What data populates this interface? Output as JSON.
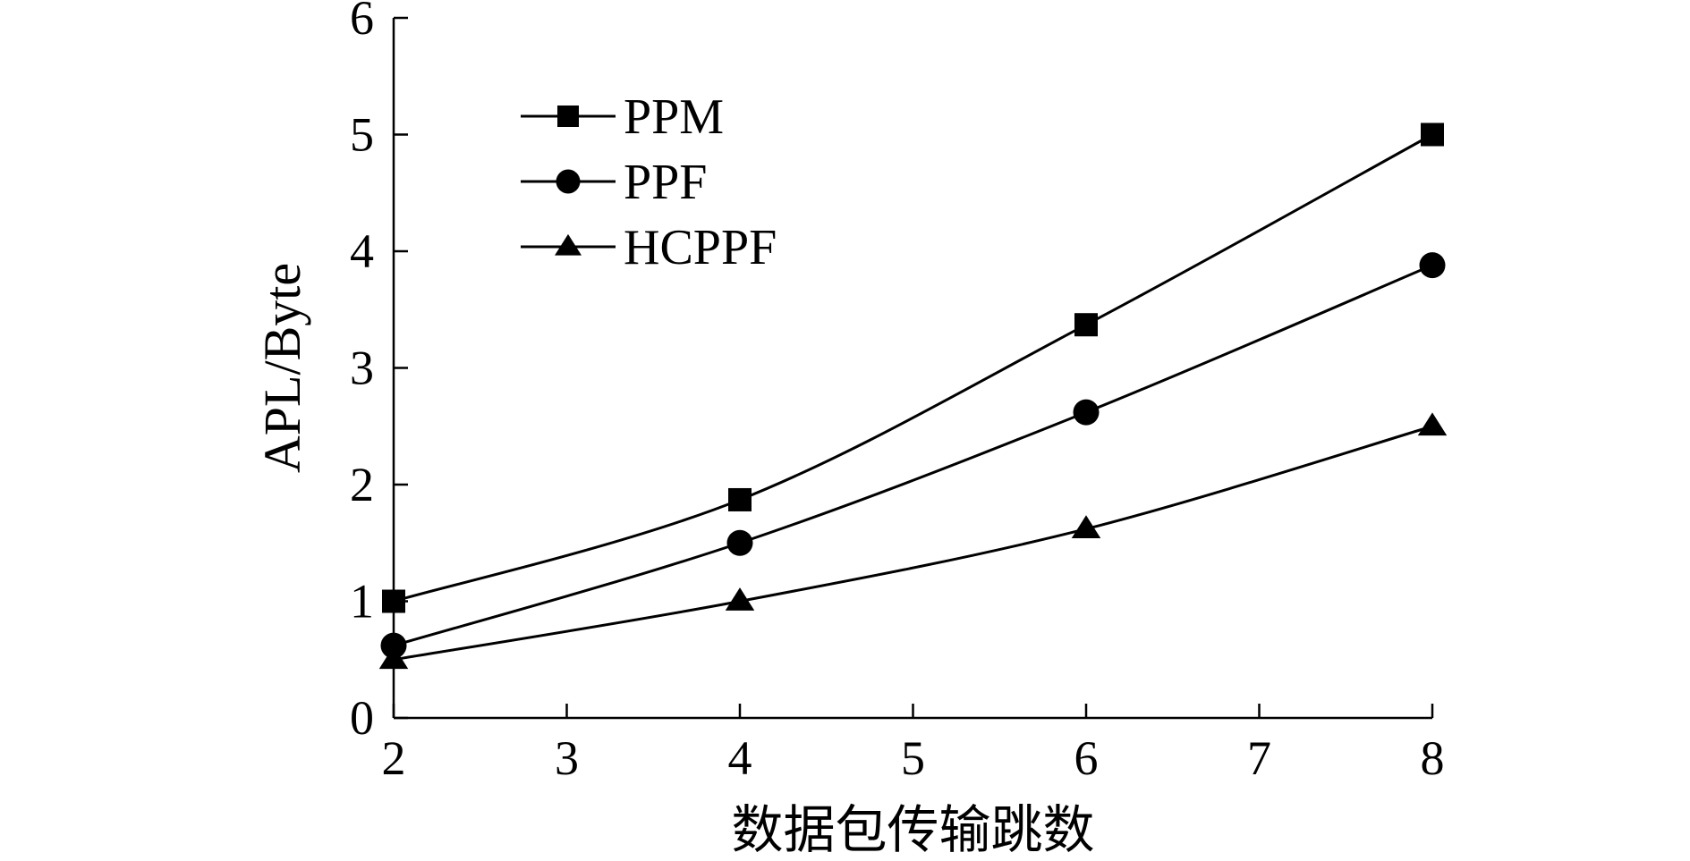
{
  "chart_data": {
    "type": "line",
    "title": "",
    "xlabel": "数据包传输跳数",
    "ylabel": "APL/Byte",
    "xlim": [
      2,
      8
    ],
    "ylim": [
      0,
      6
    ],
    "xticks": [
      2,
      3,
      4,
      5,
      6,
      7,
      8
    ],
    "yticks": [
      0,
      1,
      2,
      3,
      4,
      5,
      6
    ],
    "grid": false,
    "legend_position": "top-left",
    "x": [
      2,
      4,
      6,
      8
    ],
    "series": [
      {
        "name": "PPM",
        "marker": "square",
        "values": [
          1.0,
          1.87,
          3.37,
          5.0
        ]
      },
      {
        "name": "PPF",
        "marker": "circle",
        "values": [
          0.62,
          1.5,
          2.62,
          3.88
        ]
      },
      {
        "name": "HCPPF",
        "marker": "triangle",
        "values": [
          0.5,
          1.0,
          1.62,
          2.5
        ]
      }
    ]
  }
}
